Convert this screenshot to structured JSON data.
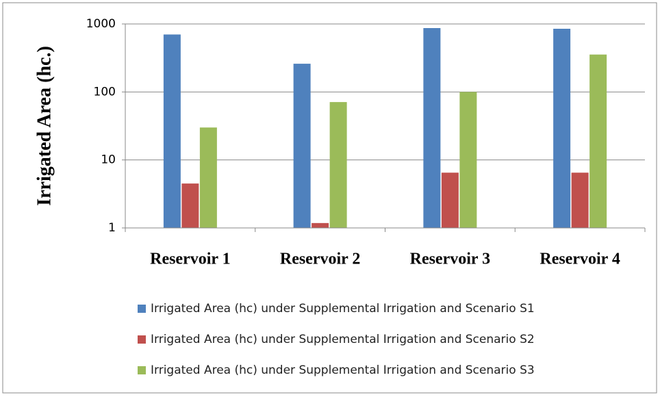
{
  "chart_data": {
    "type": "bar",
    "y_label": "Irrigated Area (hc.)",
    "categories": [
      "Reservoir 1",
      "Reservoir 2",
      "Reservoir 3",
      "Reservoir 4"
    ],
    "series": [
      {
        "name": "Irrigated Area (hc) under Supplemental Irrigation and Scenario S1",
        "color": "#4f81bd",
        "values": [
          700,
          260,
          870,
          850
        ]
      },
      {
        "name": "Irrigated Area (hc) under Supplemental Irrigation and Scenario S2",
        "color": "#c0504d",
        "values": [
          4.5,
          1.18,
          6.5,
          6.5
        ]
      },
      {
        "name": "Irrigated Area (hc) under Supplemental Irrigation and Scenario S3",
        "color": "#9bbb59",
        "values": [
          30,
          71,
          100,
          355
        ]
      }
    ],
    "ylim": [
      1,
      1000
    ],
    "yticks": [
      1,
      10,
      100,
      1000
    ],
    "log_scale": true,
    "grid": true,
    "legend": "bottom"
  }
}
